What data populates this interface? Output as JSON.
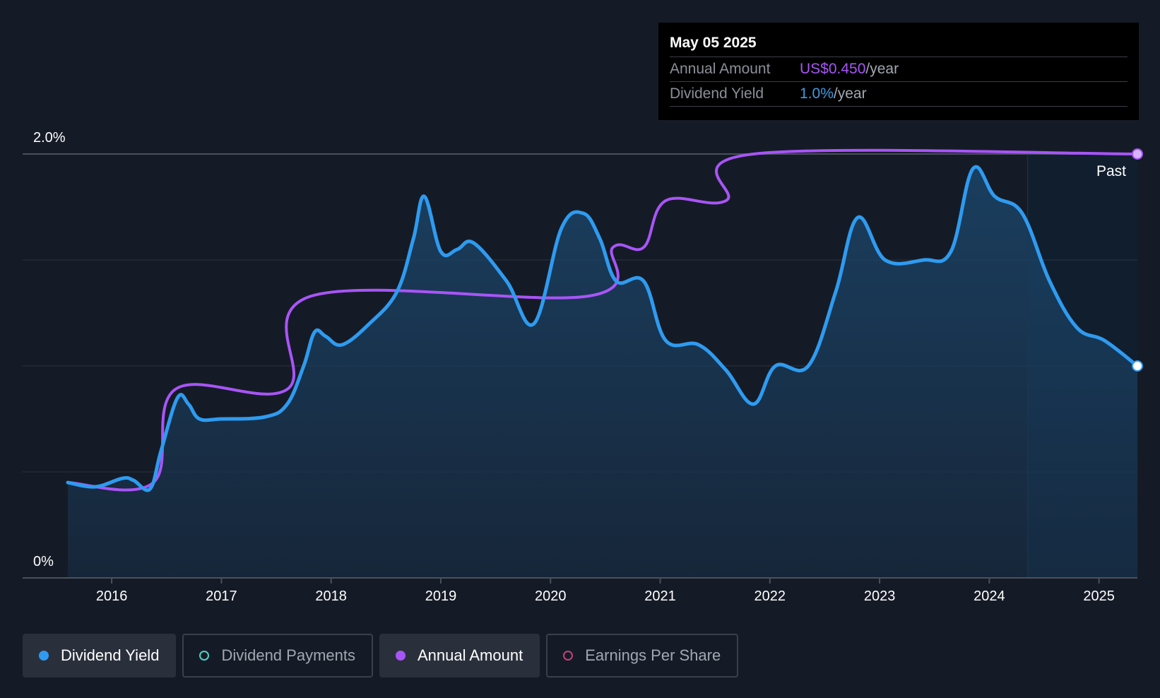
{
  "tooltip": {
    "date": "May 05 2025",
    "annual_label": "Annual Amount",
    "annual_value": "US$0.450",
    "annual_unit": "/year",
    "yield_label": "Dividend Yield",
    "yield_value": "1.0%",
    "yield_unit": "/year"
  },
  "chart_data": {
    "type": "line",
    "y_ticks": [
      "2.0%",
      "0%"
    ],
    "ylim": [
      0,
      2.0
    ],
    "x_ticks": [
      "2016",
      "2017",
      "2018",
      "2019",
      "2020",
      "2021",
      "2022",
      "2023",
      "2024",
      "2025"
    ],
    "xlim": [
      2015.6,
      2025.35
    ],
    "past_label": "Past",
    "past_start": 2024.35,
    "series": [
      {
        "name": "Dividend Yield",
        "color": "#2e9bf0",
        "points": [
          [
            2015.6,
            0.45
          ],
          [
            2015.85,
            0.43
          ],
          [
            2016.1,
            0.47
          ],
          [
            2016.2,
            0.46
          ],
          [
            2016.35,
            0.42
          ],
          [
            2016.45,
            0.6
          ],
          [
            2016.6,
            0.85
          ],
          [
            2016.7,
            0.82
          ],
          [
            2016.8,
            0.75
          ],
          [
            2017.0,
            0.75
          ],
          [
            2017.4,
            0.76
          ],
          [
            2017.6,
            0.82
          ],
          [
            2017.75,
            1.0
          ],
          [
            2017.85,
            1.16
          ],
          [
            2017.95,
            1.14
          ],
          [
            2018.1,
            1.1
          ],
          [
            2018.35,
            1.2
          ],
          [
            2018.6,
            1.35
          ],
          [
            2018.75,
            1.6
          ],
          [
            2018.85,
            1.8
          ],
          [
            2019.0,
            1.54
          ],
          [
            2019.15,
            1.55
          ],
          [
            2019.3,
            1.58
          ],
          [
            2019.6,
            1.4
          ],
          [
            2019.85,
            1.2
          ],
          [
            2020.1,
            1.65
          ],
          [
            2020.3,
            1.72
          ],
          [
            2020.45,
            1.6
          ],
          [
            2020.6,
            1.4
          ],
          [
            2020.85,
            1.4
          ],
          [
            2021.05,
            1.12
          ],
          [
            2021.35,
            1.1
          ],
          [
            2021.6,
            0.98
          ],
          [
            2021.85,
            0.82
          ],
          [
            2022.05,
            1.0
          ],
          [
            2022.35,
            1.0
          ],
          [
            2022.6,
            1.35
          ],
          [
            2022.8,
            1.7
          ],
          [
            2023.05,
            1.5
          ],
          [
            2023.4,
            1.5
          ],
          [
            2023.65,
            1.54
          ],
          [
            2023.85,
            1.93
          ],
          [
            2024.05,
            1.8
          ],
          [
            2024.3,
            1.72
          ],
          [
            2024.55,
            1.4
          ],
          [
            2024.8,
            1.18
          ],
          [
            2025.05,
            1.12
          ],
          [
            2025.35,
            1.0
          ]
        ]
      },
      {
        "name": "Annual Amount",
        "color": "#a855f7",
        "points": [
          [
            2015.6,
            0.45
          ],
          [
            2016.38,
            0.45
          ],
          [
            2016.58,
            0.89
          ],
          [
            2017.6,
            0.89
          ],
          [
            2017.82,
            1.33
          ],
          [
            2020.35,
            1.33
          ],
          [
            2020.57,
            1.56
          ],
          [
            2020.85,
            1.56
          ],
          [
            2021.05,
            1.78
          ],
          [
            2021.6,
            1.78
          ],
          [
            2021.85,
            2.0
          ],
          [
            2025.35,
            2.0
          ]
        ]
      }
    ]
  },
  "legend": [
    {
      "label": "Dividend Yield",
      "active": true
    },
    {
      "label": "Dividend Payments",
      "active": false
    },
    {
      "label": "Annual Amount",
      "active": true
    },
    {
      "label": "Earnings Per Share",
      "active": false
    }
  ]
}
